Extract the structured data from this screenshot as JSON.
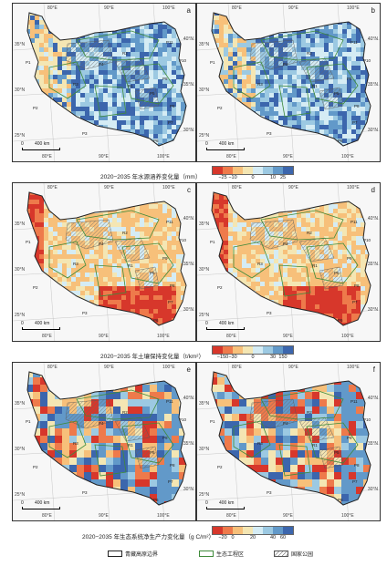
{
  "panels": [
    {
      "label": "a"
    },
    {
      "label": "b"
    },
    {
      "label": "c"
    },
    {
      "label": "d"
    },
    {
      "label": "e"
    },
    {
      "label": "f"
    }
  ],
  "lat_labels": [
    "35°N",
    "30°N",
    "25°N"
  ],
  "lat_labels_right": [
    "40°N",
    "35°N",
    "30°N"
  ],
  "lon_labels": [
    "80°E",
    "90°E",
    "100°E"
  ],
  "region_labels": [
    "R1",
    "R2",
    "R3",
    "P1",
    "P2",
    "P3",
    "P4",
    "P5",
    "P6",
    "P7",
    "P8",
    "P9",
    "P10",
    "P11"
  ],
  "scale": {
    "zero": "0",
    "distance": "400 km"
  },
  "legends": [
    {
      "title": "2020−2035 年水源涵养变化量（mm）",
      "ticks": [
        "−25",
        "−10",
        "0",
        "10",
        "25"
      ],
      "colors": [
        "#d7372b",
        "#ee7a4b",
        "#f7c07a",
        "#f4e6b3",
        "#d5ecf4",
        "#9cc9e2",
        "#6299c9",
        "#3c66ad"
      ]
    },
    {
      "title": "2020−2035 年土壤保持变化量（t/km²）",
      "ticks": [
        "−150",
        "−30",
        "0",
        "30",
        "150"
      ],
      "colors": [
        "#d7372b",
        "#ee7a4b",
        "#f7c07a",
        "#f4e6b3",
        "#d5ecf4",
        "#9cc9e2",
        "#6299c9",
        "#3c66ad"
      ]
    },
    {
      "title": "2020−2035 年生态系统净生产力变化量（g C/m²）",
      "ticks": [
        "−20",
        "0",
        "20",
        "40",
        "60"
      ],
      "colors": [
        "#d7372b",
        "#ee7a4b",
        "#f7c07a",
        "#f4e6b3",
        "#d5ecf4",
        "#9cc9e2",
        "#6299c9",
        "#3c66ad"
      ]
    }
  ],
  "bottom_legend": {
    "boundary": "青藏高原边界",
    "eco_project": "生态工程区",
    "national_park": "国家公园"
  },
  "colors": {
    "boundary": "#222222",
    "eco_project": "#3f8a3a",
    "hatch": "#777777"
  }
}
